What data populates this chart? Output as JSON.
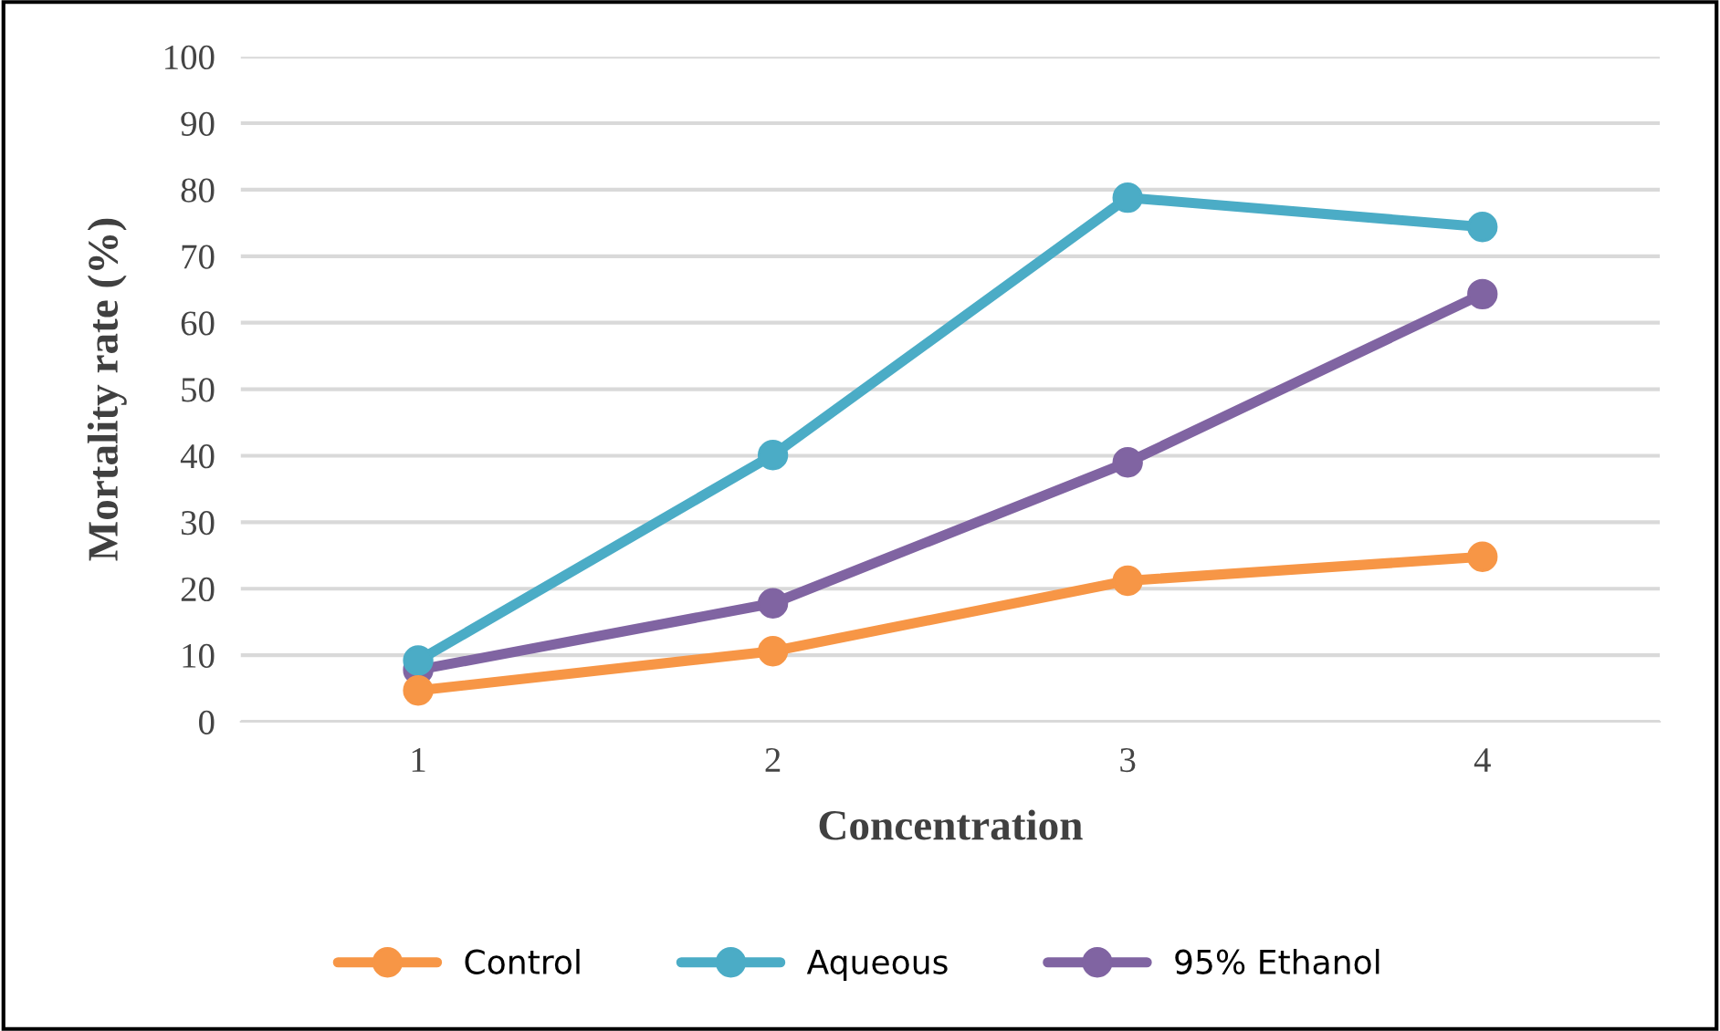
{
  "chart_data": {
    "type": "line",
    "xlabel": "Concentration",
    "ylabel": "Mortality rate (%)",
    "categories": [
      "1",
      "2",
      "3",
      "4"
    ],
    "series": [
      {
        "name": "Control",
        "color": "#f79646",
        "values": [
          4.7,
          10.6,
          21.2,
          24.8
        ]
      },
      {
        "name": "Aqueous",
        "color": "#4bacc6",
        "values": [
          9.2,
          40.1,
          78.8,
          74.4
        ]
      },
      {
        "name": "95% Ethanol",
        "color": "#8064a2",
        "values": [
          7.8,
          17.8,
          39,
          64.3
        ]
      }
    ],
    "ylim": [
      0,
      100
    ],
    "yticks": [
      0,
      10,
      20,
      30,
      40,
      50,
      60,
      70,
      80,
      90,
      100
    ],
    "grid": "y",
    "legend": "bottom",
    "marker": "circle",
    "line_style": "solid"
  }
}
